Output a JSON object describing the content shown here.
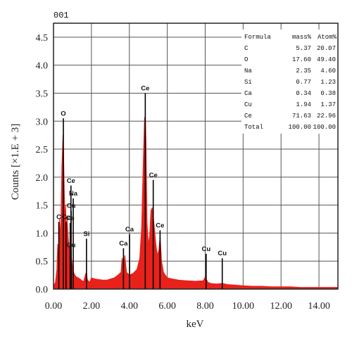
{
  "spectrum_id": "001",
  "chart_data": {
    "type": "line",
    "xlabel": "keV",
    "ylabel": "Counts [×1.E + 3]",
    "xlim": [
      0,
      15
    ],
    "ylim": [
      0,
      4.75
    ],
    "x_ticks": [
      0,
      2,
      4,
      6,
      8,
      10,
      12,
      14
    ],
    "x_tick_labels": [
      "0.00",
      "2.00",
      "4.00",
      "6.00",
      "8.00",
      "10.00",
      "12.00",
      "14.00"
    ],
    "y_ticks": [
      0,
      0.5,
      1.0,
      1.5,
      2.0,
      2.5,
      3.0,
      3.5,
      4.0,
      4.5
    ],
    "y_tick_labels": [
      "0.0",
      "0.5",
      "1.0",
      "1.5",
      "2.0",
      "2.5",
      "3.0",
      "3.5",
      "4.0",
      "4.5"
    ],
    "grid": true,
    "series_color": "#e8211b",
    "series": [
      {
        "x": [
          0.0,
          0.1,
          0.18,
          0.22,
          0.26,
          0.28,
          0.32,
          0.38,
          0.44,
          0.5,
          0.52,
          0.56,
          0.6,
          0.64,
          0.68,
          0.72,
          0.78,
          0.84,
          0.88,
          0.93,
          0.98,
          1.02,
          1.06,
          1.12,
          1.2,
          1.3,
          1.4,
          1.5,
          1.6,
          1.7,
          1.74,
          1.78,
          1.84,
          1.92,
          2.0,
          2.2,
          2.4,
          2.6,
          2.8,
          3.0,
          3.2,
          3.4,
          3.56,
          3.62,
          3.69,
          3.76,
          3.85,
          4.0,
          4.2,
          4.4,
          4.55,
          4.65,
          4.73,
          4.8,
          4.84,
          4.88,
          4.93,
          5.0,
          5.07,
          5.14,
          5.2,
          5.26,
          5.33,
          5.4,
          5.48,
          5.56,
          5.62,
          5.7,
          5.8,
          6.0,
          6.3,
          6.6,
          7.0,
          7.5,
          7.9,
          8.0,
          8.05,
          8.15,
          8.3,
          8.6,
          8.9,
          9.2,
          9.6,
          10.0,
          10.5,
          11.0,
          11.5,
          12.0,
          12.5,
          13.0,
          13.5,
          14.0,
          14.5,
          15.0
        ],
        "y": [
          0.05,
          0.12,
          0.35,
          0.8,
          0.45,
          0.38,
          1.25,
          0.9,
          2.2,
          2.75,
          2.6,
          1.9,
          1.2,
          1.5,
          1.0,
          1.25,
          0.9,
          0.7,
          0.85,
          0.6,
          0.45,
          0.35,
          0.3,
          0.25,
          0.22,
          0.2,
          0.18,
          0.15,
          0.14,
          0.28,
          0.3,
          0.18,
          0.14,
          0.13,
          0.2,
          0.18,
          0.17,
          0.16,
          0.16,
          0.18,
          0.2,
          0.25,
          0.3,
          0.55,
          0.4,
          0.6,
          0.3,
          0.25,
          0.28,
          0.35,
          0.55,
          1.1,
          2.2,
          3.05,
          3.1,
          2.6,
          1.2,
          0.8,
          0.95,
          1.4,
          1.45,
          1.3,
          1.05,
          0.8,
          0.6,
          0.7,
          0.95,
          0.5,
          0.3,
          0.2,
          0.18,
          0.16,
          0.15,
          0.14,
          0.15,
          0.22,
          0.18,
          0.12,
          0.1,
          0.09,
          0.1,
          0.08,
          0.07,
          0.06,
          0.05,
          0.05,
          0.04,
          0.04,
          0.04,
          0.03,
          0.03,
          0.03,
          0.03,
          0.03
        ]
      }
    ],
    "peak_markers": [
      {
        "label": "C",
        "x": 0.28,
        "y_top": 1.2,
        "label_dx": 0,
        "label_dy": 0
      },
      {
        "label": "O",
        "x": 0.52,
        "y_top": 3.05,
        "label_dx": 0,
        "label_dy": 0
      },
      {
        "label": "Ce",
        "x": 0.66,
        "y_top": 1.2,
        "label_dx": 0,
        "label_dy": 0
      },
      {
        "label": "Ce",
        "x": 0.92,
        "y_top": 1.85,
        "label_dx": 0,
        "label_dy": 0
      },
      {
        "label": "Na",
        "x": 1.04,
        "y_top": 1.62,
        "label_dx": 0,
        "label_dy": 0
      },
      {
        "label": "Cu",
        "x": 0.93,
        "y_top": 1.4,
        "label_dx": 0,
        "label_dy": 0
      },
      {
        "label": "Ce",
        "x": 0.88,
        "y_top": 1.18,
        "label_dx": 0,
        "label_dy": 0
      },
      {
        "label": "Cu",
        "x": 0.93,
        "y_top": 0.7,
        "label_dx": 0,
        "label_dy": 0
      },
      {
        "label": "Si",
        "x": 1.74,
        "y_top": 0.9,
        "label_dx": 0,
        "label_dy": 0
      },
      {
        "label": "Ca",
        "x": 3.69,
        "y_top": 0.73,
        "label_dx": 0,
        "label_dy": 0
      },
      {
        "label": "Ca",
        "x": 4.01,
        "y_top": 0.98,
        "label_dx": 0,
        "label_dy": 0
      },
      {
        "label": "Ce",
        "x": 4.84,
        "y_top": 3.5,
        "label_dx": 0,
        "label_dy": 0
      },
      {
        "label": "Ce",
        "x": 5.26,
        "y_top": 1.95,
        "label_dx": 0,
        "label_dy": 0
      },
      {
        "label": "Ce",
        "x": 5.62,
        "y_top": 1.05,
        "label_dx": 0,
        "label_dy": 0
      },
      {
        "label": "Cu",
        "x": 8.05,
        "y_top": 0.63,
        "label_dx": 0,
        "label_dy": 0
      },
      {
        "label": "Cu",
        "x": 8.9,
        "y_top": 0.55,
        "label_dx": 0,
        "label_dy": 0
      }
    ],
    "table": {
      "headers": [
        "Formula",
        "mass%",
        "Atom%"
      ],
      "rows": [
        [
          "C",
          "5.37",
          "20.07"
        ],
        [
          "O",
          "17.60",
          "49.40"
        ],
        [
          "Na",
          "2.35",
          "4.60"
        ],
        [
          "Si",
          "0.77",
          "1.23"
        ],
        [
          "Ca",
          "0.34",
          "0.38"
        ],
        [
          "Cu",
          "1.94",
          "1.37"
        ],
        [
          "Ce",
          "71.63",
          "22.96"
        ],
        [
          "Total",
          "100.00",
          "100.00"
        ]
      ]
    }
  }
}
